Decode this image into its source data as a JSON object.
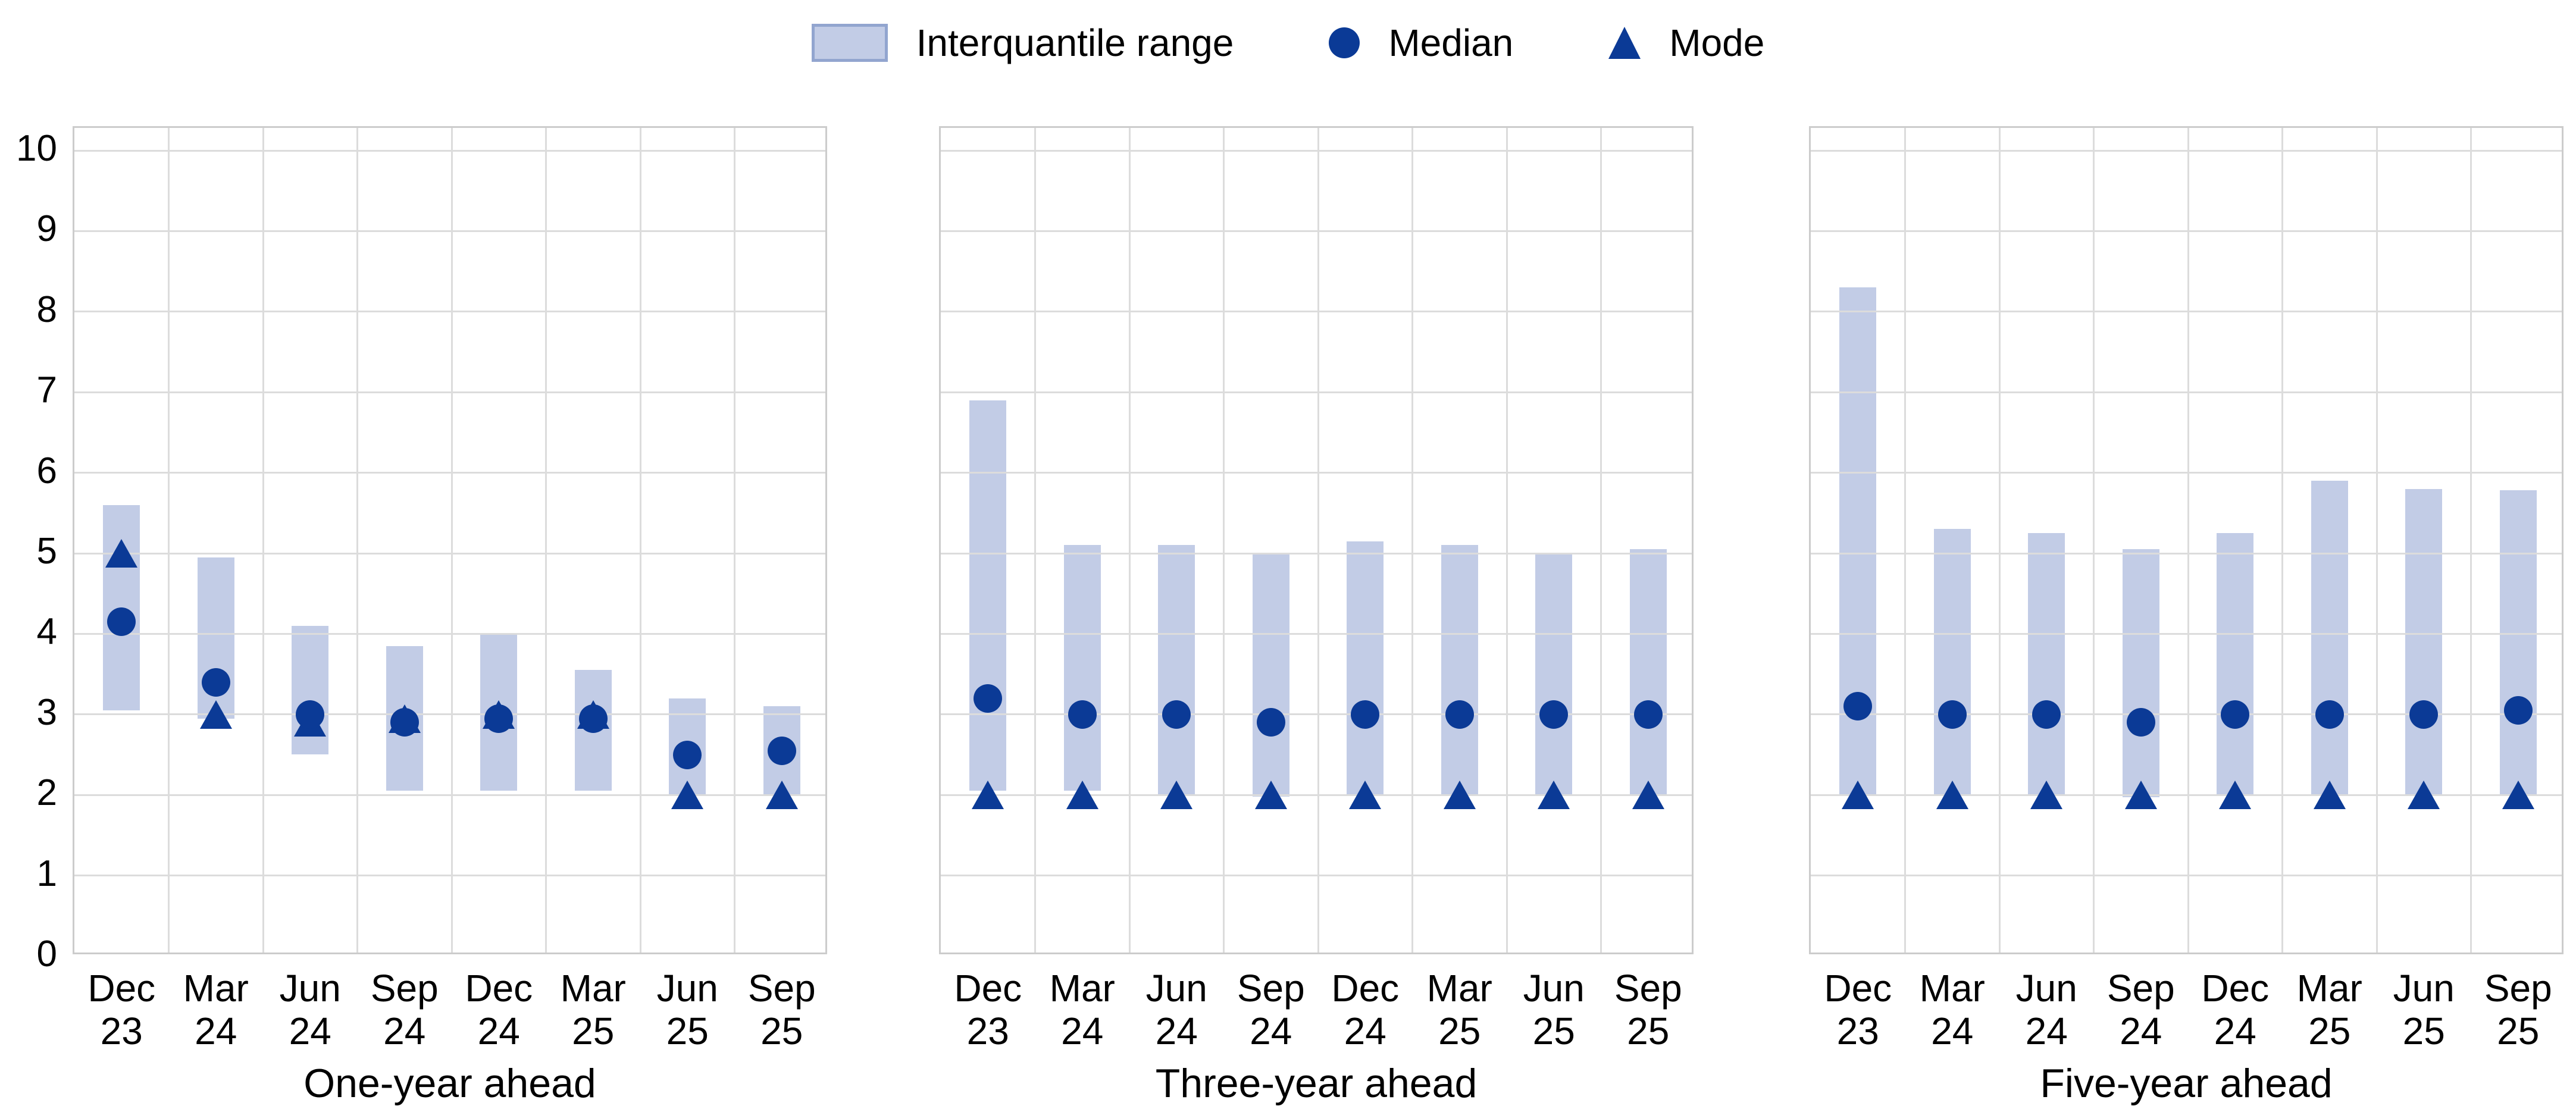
{
  "legend": {
    "items": [
      {
        "label": "Interquantile range",
        "symbol": "range-swatch"
      },
      {
        "label": "Median",
        "symbol": "circle"
      },
      {
        "label": "Mode",
        "symbol": "triangle"
      }
    ]
  },
  "colors": {
    "range_fill": "#c2cce6",
    "range_edge": "#92a5cf",
    "marker_blue": "#0b3a96",
    "gridline": "#dcdcdc",
    "panel_border": "#cccccc",
    "text": "#000000",
    "background": "#ffffff"
  },
  "y_axis": {
    "min": 0,
    "max": 10,
    "ticks": [
      "0",
      "1",
      "2",
      "3",
      "4",
      "5",
      "6",
      "7",
      "8",
      "9",
      "10"
    ]
  },
  "chart_data": {
    "type": "bar",
    "subtype": "interquantile-range-bars-with-median-and-mode-markers",
    "ylim": [
      0,
      10
    ],
    "grid": true,
    "legend_position": "top-center",
    "categories": [
      "Dec 23",
      "Mar 24",
      "Jun 24",
      "Sep 24",
      "Dec 24",
      "Mar 25",
      "Jun 25",
      "Sep 25"
    ],
    "panels": [
      {
        "title": "One-year ahead",
        "range_low": [
          3.05,
          2.95,
          2.5,
          2.05,
          2.05,
          2.05,
          2.0,
          2.0
        ],
        "range_high": [
          5.6,
          4.95,
          4.1,
          3.85,
          4.0,
          3.55,
          3.2,
          3.1
        ],
        "median": [
          4.15,
          3.4,
          3.0,
          2.9,
          2.95,
          2.95,
          2.5,
          2.55
        ],
        "mode": [
          5.0,
          3.0,
          2.9,
          2.95,
          3.0,
          3.0,
          2.0,
          2.0
        ]
      },
      {
        "title": "Three-year ahead",
        "range_low": [
          2.05,
          2.05,
          2.0,
          1.98,
          2.0,
          2.0,
          2.0,
          2.0
        ],
        "range_high": [
          6.9,
          5.1,
          5.1,
          5.0,
          5.15,
          5.1,
          5.0,
          5.05
        ],
        "median": [
          3.2,
          3.0,
          3.0,
          2.9,
          3.0,
          3.0,
          3.0,
          3.0
        ],
        "mode": [
          2.0,
          2.0,
          2.0,
          2.0,
          2.0,
          2.0,
          2.0,
          2.0
        ]
      },
      {
        "title": "Five-year ahead",
        "range_low": [
          2.0,
          2.0,
          2.0,
          1.97,
          2.0,
          2.0,
          2.0,
          2.0
        ],
        "range_high": [
          8.3,
          5.3,
          5.25,
          5.05,
          5.25,
          5.9,
          5.8,
          5.78
        ],
        "median": [
          3.1,
          3.0,
          3.0,
          2.9,
          3.0,
          3.0,
          3.0,
          3.05
        ],
        "mode": [
          2.0,
          2.0,
          2.0,
          2.0,
          2.0,
          2.0,
          2.0,
          2.0
        ]
      }
    ]
  }
}
